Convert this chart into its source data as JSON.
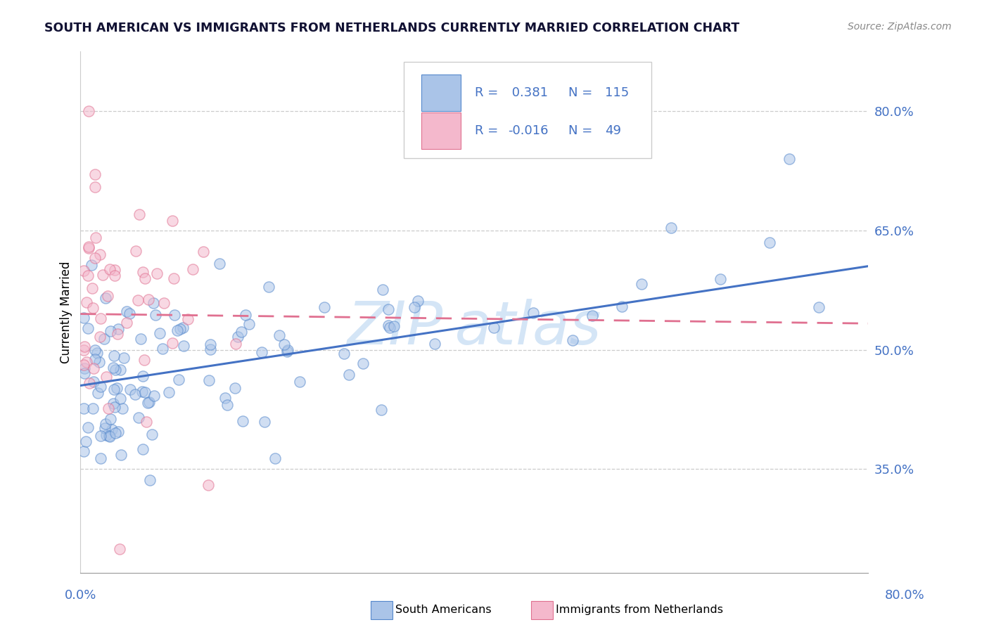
{
  "title": "SOUTH AMERICAN VS IMMIGRANTS FROM NETHERLANDS CURRENTLY MARRIED CORRELATION CHART",
  "source": "Source: ZipAtlas.com",
  "ylabel": "Currently Married",
  "blue_label": "South Americans",
  "pink_label": "Immigrants from Netherlands",
  "blue_R": 0.381,
  "blue_N": 115,
  "pink_R": -0.016,
  "pink_N": 49,
  "blue_face_color": "#aac4e8",
  "pink_face_color": "#f4b8cc",
  "blue_edge_color": "#5588cc",
  "pink_edge_color": "#e07090",
  "blue_line_color": "#4472c4",
  "pink_line_color": "#e07090",
  "legend_text_color": "#4472c4",
  "xmin": 0.0,
  "xmax": 0.8,
  "ymin": 0.22,
  "ymax": 0.875,
  "ytick_values": [
    0.35,
    0.5,
    0.65,
    0.8
  ],
  "ytick_labels": [
    "35.0%",
    "50.0%",
    "65.0%",
    "80.0%"
  ],
  "blue_trend_x0": 0.0,
  "blue_trend_y0": 0.455,
  "blue_trend_x1": 0.8,
  "blue_trend_y1": 0.605,
  "pink_trend_x0": 0.0,
  "pink_trend_y0": 0.545,
  "pink_trend_x1": 0.8,
  "pink_trend_y1": 0.533,
  "grid_color": "#cccccc",
  "watermark_text": "ZIP atlas",
  "title_fontsize": 12.5,
  "source_fontsize": 10,
  "axis_label_fontsize": 12,
  "tick_fontsize": 13,
  "legend_fontsize": 13,
  "scatter_size": 120,
  "scatter_alpha": 0.55
}
